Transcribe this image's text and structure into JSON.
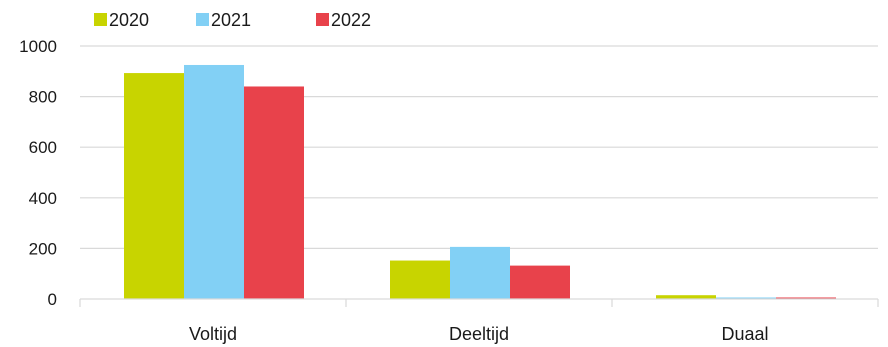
{
  "chart_data": {
    "type": "bar",
    "categories": [
      "Voltijd",
      "Deeltijd",
      "Duaal"
    ],
    "series": [
      {
        "name": "2020",
        "color": "#c8d400",
        "values": [
          893,
          152,
          15
        ]
      },
      {
        "name": "2021",
        "color": "#82d0f5",
        "values": [
          925,
          206,
          6
        ]
      },
      {
        "name": "2022",
        "color": "#e8424b",
        "values": [
          840,
          132,
          6
        ]
      }
    ],
    "ylim": [
      0,
      1000
    ],
    "yticks": [
      0,
      200,
      400,
      600,
      800,
      1000
    ],
    "grid": true,
    "legend": "top-left"
  }
}
